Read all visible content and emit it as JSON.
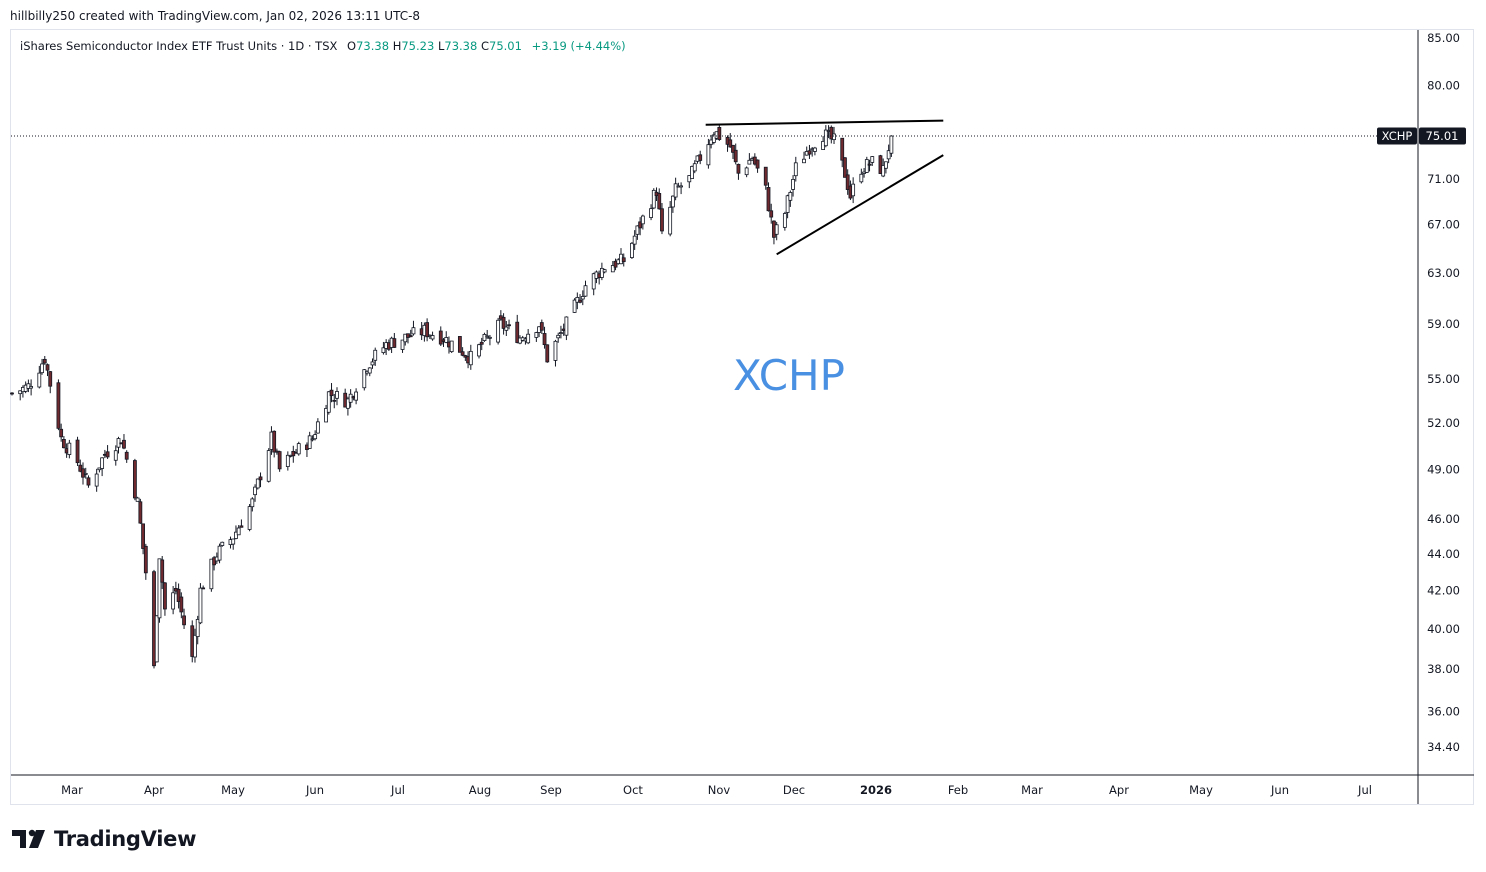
{
  "header": {
    "credit": "hillbilly250 created with TradingView.com, Jan 02, 2026 13:11 UTC-8"
  },
  "legend": {
    "title": "iShares Semiconductor Index ETF Trust Units · 1D · TSX",
    "open_label": "O",
    "open": "73.38",
    "high_label": "H",
    "high": "75.23",
    "low_label": "L",
    "low": "73.38",
    "close_label": "C",
    "close": "75.01",
    "change": "+3.19 (+4.44%)"
  },
  "price_tag": {
    "symbol": "XCHP",
    "value": "75.01"
  },
  "watermark": "XCHP",
  "logo": {
    "text": "TradingView"
  },
  "colors": {
    "up": "#089981",
    "down": "#6e2a2f",
    "wick": "#131722",
    "watermark": "#4a90e2",
    "tag_bg": "#131722",
    "grid_border": "#e0e3eb"
  },
  "chart_data": {
    "type": "candlestick",
    "symbol": "XCHP",
    "interval": "1D",
    "exchange": "TSX",
    "y_scale": "log",
    "grid": false,
    "y_ticks": [
      "85.00",
      "80.00",
      "71.00",
      "67.00",
      "63.00",
      "59.00",
      "55.00",
      "52.00",
      "49.00",
      "46.00",
      "44.00",
      "42.00",
      "40.00",
      "38.00",
      "36.00",
      "34.40"
    ],
    "x_ticks": [
      "Mar",
      "Apr",
      "May",
      "Jun",
      "Jul",
      "Aug",
      "Sep",
      "Oct",
      "Nov",
      "Dec",
      "2026",
      "Feb",
      "Mar",
      "Apr",
      "May",
      "Jun",
      "Jul"
    ],
    "last_price": 75.01,
    "path": [
      [
        "2025-02-14",
        54
      ],
      [
        "2025-02-20",
        54.5
      ],
      [
        "2025-02-26",
        56.5
      ],
      [
        "2025-03-04",
        51
      ],
      [
        "2025-03-10",
        49.5
      ],
      [
        "2025-03-14",
        48
      ],
      [
        "2025-03-20",
        50
      ],
      [
        "2025-03-26",
        51
      ],
      [
        "2025-04-01",
        47
      ],
      [
        "2025-04-04",
        43
      ],
      [
        "2025-04-07",
        38
      ],
      [
        "2025-04-09",
        44
      ],
      [
        "2025-04-11",
        41
      ],
      [
        "2025-04-15",
        42
      ],
      [
        "2025-04-21",
        38.5
      ],
      [
        "2025-04-24",
        42
      ],
      [
        "2025-04-30",
        44
      ],
      [
        "2025-05-06",
        45
      ],
      [
        "2025-05-13",
        47
      ],
      [
        "2025-05-20",
        51
      ],
      [
        "2025-05-23",
        49
      ],
      [
        "2025-05-28",
        50
      ],
      [
        "2025-06-04",
        51
      ],
      [
        "2025-06-10",
        54
      ],
      [
        "2025-06-17",
        53.5
      ],
      [
        "2025-06-24",
        56
      ],
      [
        "2025-07-01",
        57.5
      ],
      [
        "2025-07-08",
        58
      ],
      [
        "2025-07-15",
        58.5
      ],
      [
        "2025-07-22",
        58
      ],
      [
        "2025-07-29",
        57
      ],
      [
        "2025-08-01",
        56.5
      ],
      [
        "2025-08-05",
        57.5
      ],
      [
        "2025-08-12",
        59
      ],
      [
        "2025-08-19",
        58
      ],
      [
        "2025-08-26",
        59
      ],
      [
        "2025-08-29",
        56.5
      ],
      [
        "2025-09-05",
        59
      ],
      [
        "2025-09-12",
        62
      ],
      [
        "2025-09-19",
        63.5
      ],
      [
        "2025-09-26",
        64
      ],
      [
        "2025-10-03",
        67.5
      ],
      [
        "2025-10-08",
        70
      ],
      [
        "2025-10-10",
        66
      ],
      [
        "2025-10-15",
        70
      ],
      [
        "2025-10-20",
        71
      ],
      [
        "2025-10-24",
        73
      ],
      [
        "2025-10-29",
        75.5
      ],
      [
        "2025-11-04",
        74
      ],
      [
        "2025-11-07",
        71.5
      ],
      [
        "2025-11-12",
        73
      ],
      [
        "2025-11-17",
        70
      ],
      [
        "2025-11-20",
        66
      ],
      [
        "2025-11-24",
        68
      ],
      [
        "2025-11-28",
        72
      ],
      [
        "2025-12-03",
        74
      ],
      [
        "2025-12-08",
        75.2
      ],
      [
        "2025-12-12",
        74.5
      ],
      [
        "2025-12-16",
        71.5
      ],
      [
        "2025-12-18",
        69.5
      ],
      [
        "2025-12-22",
        72
      ],
      [
        "2025-12-26",
        72.5
      ],
      [
        "2025-12-30",
        71.8
      ],
      [
        "2026-01-02",
        75.01
      ]
    ],
    "trendlines": [
      {
        "from": [
          "2025-10-26",
          76.1
        ],
        "to": [
          "2026-01-21",
          76.5
        ]
      },
      {
        "from": [
          "2025-11-21",
          64.5
        ],
        "to": [
          "2026-01-21",
          73.2
        ]
      }
    ]
  }
}
